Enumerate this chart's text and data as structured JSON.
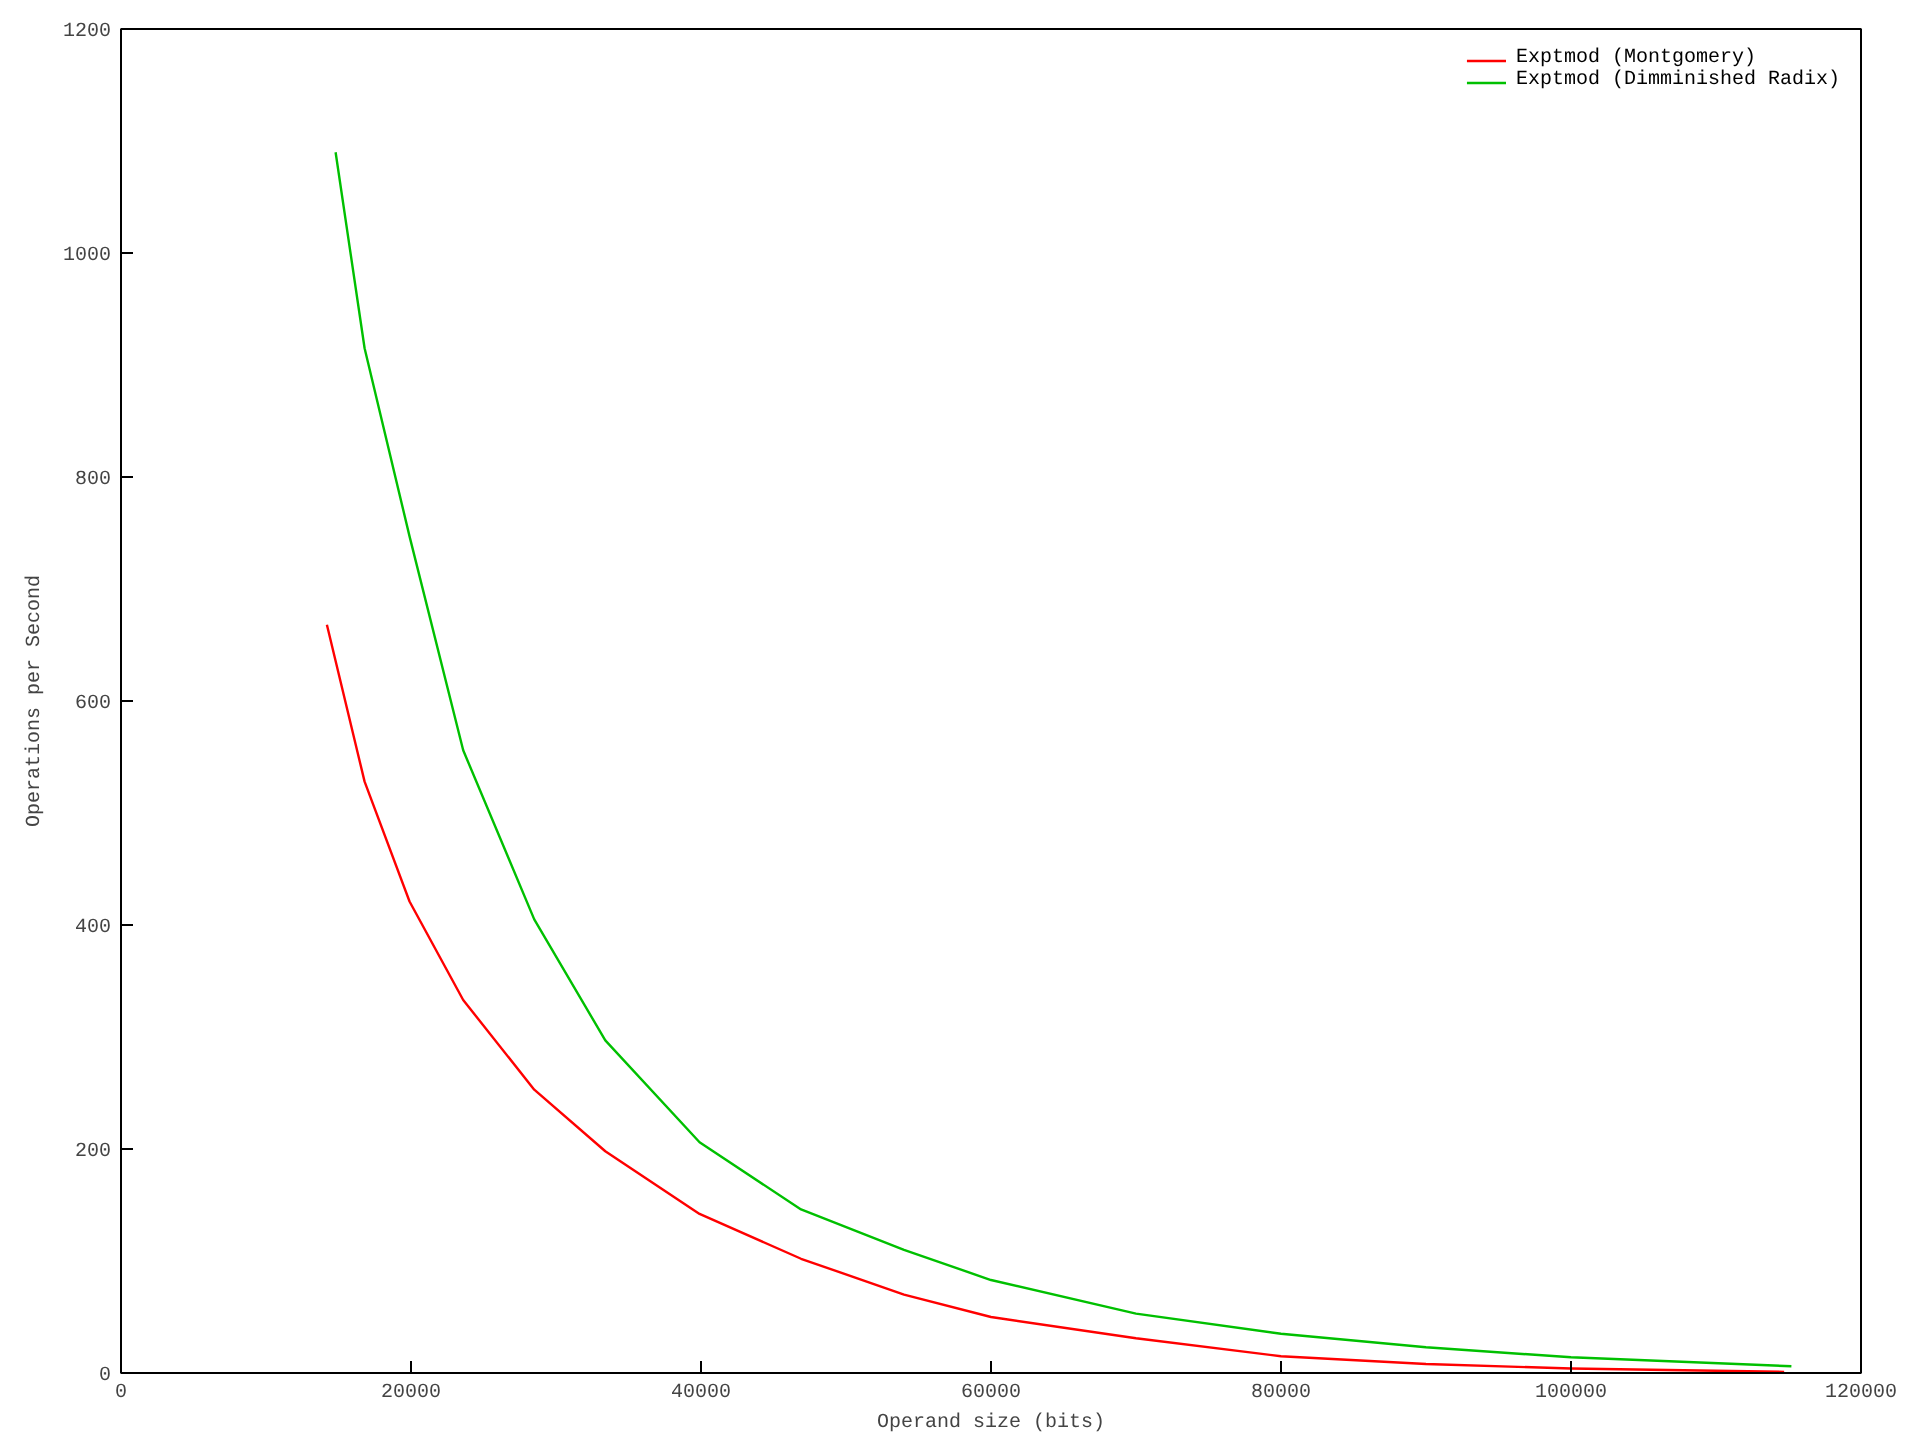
{
  "chart_data": {
    "type": "line",
    "xlabel": "Operand size (bits)",
    "ylabel": "Operations per Second",
    "xlim": [
      0,
      120000
    ],
    "xticks": [
      0,
      20000,
      40000,
      60000,
      80000,
      100000,
      120000
    ],
    "ylim": [
      0,
      1200
    ],
    "yticks": [
      0,
      200,
      400,
      600,
      800,
      1000,
      1200
    ],
    "grid": false,
    "legend": "top right",
    "marker": "none",
    "line_style": "solid",
    "series": [
      {
        "name": "Exptmod (Montgomery)",
        "color": "#ff0000",
        "x": [
          14200,
          16800,
          19900,
          23600,
          28500,
          33400,
          39900,
          46900,
          54000,
          60000,
          70000,
          80000,
          90000,
          100000,
          114700
        ],
        "values": [
          668,
          528,
          421,
          333,
          253,
          198,
          142,
          102,
          70,
          50,
          31,
          15,
          8,
          4,
          1
        ]
      },
      {
        "name": "Exptmod (Dimminished Radix)",
        "color": "#00c000",
        "x": [
          14800,
          16800,
          19900,
          23600,
          28500,
          33400,
          39900,
          46900,
          54000,
          60000,
          70000,
          80000,
          90000,
          100000,
          115200
        ],
        "values": [
          1090,
          915,
          747,
          556,
          405,
          297,
          206,
          146,
          110,
          83,
          53,
          35,
          23,
          14,
          6
        ]
      }
    ]
  }
}
